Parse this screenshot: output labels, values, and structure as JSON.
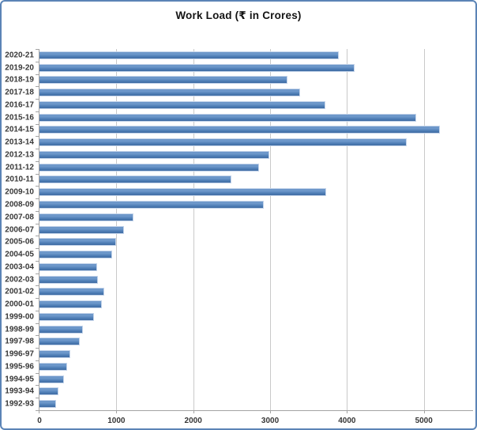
{
  "chart_data": {
    "type": "bar",
    "orientation": "horizontal",
    "title": "Work Load (₹ in Crores)",
    "xlabel": "",
    "ylabel": "",
    "categories": [
      "2020-21",
      "2019-20",
      "2018-19",
      "2017-18",
      "2016-17",
      "2015-16",
      "2014-15",
      "2013-14",
      "2012-13",
      "2011-12",
      "2010-11",
      "2009-10",
      "2008-09",
      "2007-08",
      "2006-07",
      "2005-06",
      "2004-05",
      "2003-04",
      "2002-03",
      "2001-02",
      "2000-01",
      "1999-00",
      "1998-99",
      "1997-98",
      "1996-97",
      "1995-96",
      "1994-95",
      "1993-94",
      "1992-93"
    ],
    "values": [
      3890,
      4100,
      3230,
      3390,
      3720,
      4900,
      5210,
      4780,
      2990,
      2860,
      2500,
      3730,
      2920,
      1220,
      1100,
      995,
      940,
      755,
      760,
      840,
      815,
      710,
      565,
      525,
      400,
      355,
      315,
      250,
      220
    ],
    "xlim": [
      0,
      5640
    ],
    "x_ticks": [
      0,
      1000,
      2000,
      3000,
      4000,
      5000
    ],
    "grid": true,
    "legend": false,
    "colors": {
      "bar": "#4f81bd",
      "bar_edge": "#c4d4ea",
      "gridline": "#c9c9c9",
      "axis": "#a3a3a3",
      "label": "#373737",
      "title": "#141414",
      "chart_border": "#5b84b6",
      "background": "#ffffff"
    }
  }
}
